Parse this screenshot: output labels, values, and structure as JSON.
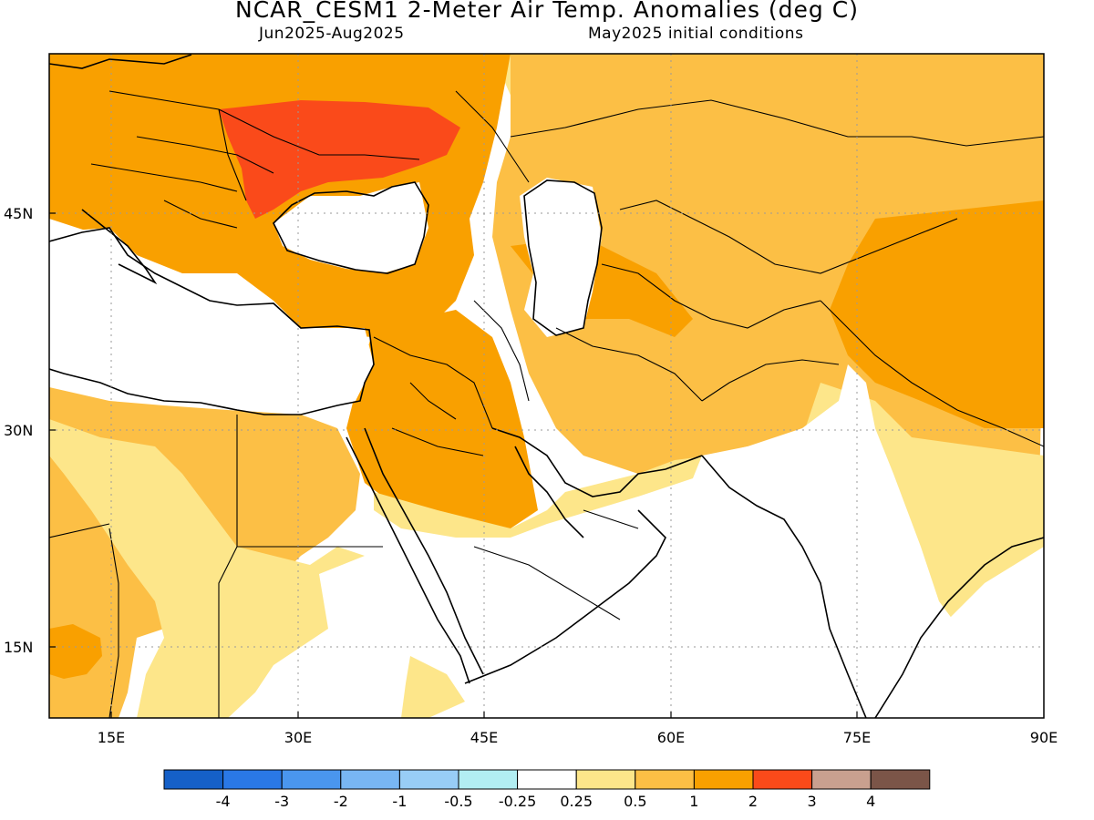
{
  "header": {
    "title": "NCAR_CESM1 2-Meter Air Temp. Anomalies (deg C)",
    "period": "Jun2025-Aug2025",
    "init": "May2025 initial conditions"
  },
  "map": {
    "lon_ticks": [
      "15E",
      "30E",
      "45E",
      "60E",
      "75E",
      "90E"
    ],
    "lat_ticks": [
      "45N",
      "30N",
      "15N"
    ],
    "lon_range": [
      10,
      90
    ],
    "lat_range": [
      10,
      56
    ],
    "gridlines": "dotted"
  },
  "colorbar": {
    "colors": [
      "#1560c8",
      "#2a78e6",
      "#4a96ee",
      "#78b6f3",
      "#98cdf6",
      "#b2eef2",
      "#ffffff",
      "#fde68a",
      "#fcbf45",
      "#f9a000",
      "#fa4a1a",
      "#c9a08f",
      "#7b5548"
    ],
    "labels": [
      "-4",
      "-3",
      "-2",
      "-1",
      "-0.5",
      "-0.25",
      "0.25",
      "0.5",
      "1",
      "2",
      "3",
      "4"
    ]
  }
}
